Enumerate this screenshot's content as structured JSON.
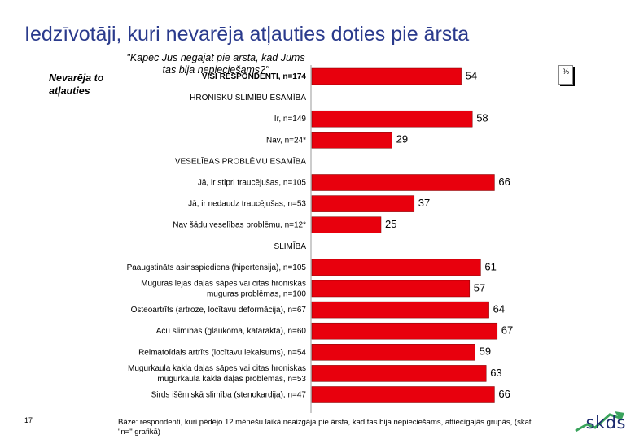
{
  "header": {
    "title": "Iedzīvotāji, kuri nevarēja atļauties doties pie ārsta",
    "question": "\"Kāpēc Jūs negājāt pie ārsta, kad Jums tas bija nepieciešams?\"",
    "series_label": "Nevarēja to atļauties",
    "unit": "%"
  },
  "chart_data": {
    "type": "bar",
    "orientation": "horizontal",
    "title": "Iedzīvotāji, kuri nevarēja atļauties doties pie ārsta",
    "unit": "%",
    "xlim": [
      0,
      100
    ],
    "bar_color": "#e8000d",
    "series": [
      {
        "name": "Nevarēja to atļauties"
      }
    ],
    "rows": [
      {
        "label": "VISI RESPONDENTI, n=174",
        "kind": "total",
        "value": 54
      },
      {
        "label": "HRONISKU SLIMĪBU ESAMĪBA",
        "kind": "header"
      },
      {
        "label": "Ir, n=149",
        "kind": "bar",
        "value": 58
      },
      {
        "label": "Nav, n=24*",
        "kind": "bar",
        "value": 29
      },
      {
        "label": "VESELĪBAS PROBLĒMU ESAMĪBA",
        "kind": "header"
      },
      {
        "label": "Jā, ir stipri traucējušas, n=105",
        "kind": "bar",
        "value": 66
      },
      {
        "label": "Jā, ir nedaudz traucējušas, n=53",
        "kind": "bar",
        "value": 37
      },
      {
        "label": "Nav šādu veselības problēmu, n=12*",
        "kind": "bar",
        "value": 25
      },
      {
        "label": "SLIMĪBA",
        "kind": "header"
      },
      {
        "label": "Paaugstināts asinsspiediens (hipertensija), n=105",
        "kind": "bar",
        "value": 61
      },
      {
        "label": "Muguras lejas daļas sāpes vai citas hroniskas muguras problēmas, n=100",
        "kind": "bar",
        "value": 57,
        "lines": [
          "Muguras lejas daļas sāpes vai citas hroniskas",
          "muguras problēmas, n=100"
        ]
      },
      {
        "label": "Osteoartrīts (artroze, locītavu deformācija), n=67",
        "kind": "bar",
        "value": 64
      },
      {
        "label": "Acu slimības (glaukoma, katarakta), n=60",
        "kind": "bar",
        "value": 67
      },
      {
        "label": "Reimatoīdais artrīts (locītavu iekaisums), n=54",
        "kind": "bar",
        "value": 59
      },
      {
        "label": "Mugurkaula kakla daļas sāpes vai citas hroniskas mugurkaula kakla daļas problēmas, n=53",
        "kind": "bar",
        "value": 63,
        "lines": [
          "Mugurkaula kakla daļas sāpes vai citas hroniskas",
          "mugurkaula kakla daļas problēmas, n=53"
        ]
      },
      {
        "label": "Sirds išēmiskā slimība (stenokardija), n=47",
        "kind": "bar",
        "value": 66
      }
    ]
  },
  "footer": {
    "page_number": "17",
    "footnote": "Bāze: respondenti, kuri pēdējo 12 mēnešu laikā neaizgāja pie ārsta, kad tas bija nepieciešams, attiecīgajās grupās, (skat. \"n=\" grafikā)",
    "logo": "skds"
  }
}
